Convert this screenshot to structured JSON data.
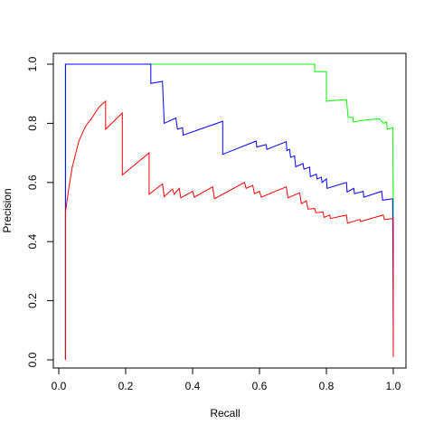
{
  "chart_data": {
    "type": "line",
    "title": "",
    "xlabel": "Recall",
    "ylabel": "Precision",
    "xlim": [
      0,
      1
    ],
    "ylim": [
      0,
      1
    ],
    "xticks": [
      "0.0",
      "0.2",
      "0.4",
      "0.6",
      "0.8",
      "1.0"
    ],
    "yticks": [
      "0.0",
      "0.2",
      "0.4",
      "0.6",
      "0.8",
      "1.0"
    ],
    "grid": false,
    "legend": "none",
    "series": [
      {
        "color": "#00ff00",
        "points": [
          [
            0.02,
            0.0
          ],
          [
            0.02,
            1.0
          ],
          [
            0.765,
            1.0
          ],
          [
            0.765,
            0.975
          ],
          [
            0.8,
            0.975
          ],
          [
            0.8,
            0.875
          ],
          [
            0.83,
            0.878
          ],
          [
            0.86,
            0.88
          ],
          [
            0.865,
            0.82
          ],
          [
            0.88,
            0.82
          ],
          [
            0.88,
            0.805
          ],
          [
            0.92,
            0.812
          ],
          [
            0.96,
            0.815
          ],
          [
            0.97,
            0.8
          ],
          [
            0.98,
            0.805
          ],
          [
            0.982,
            0.78
          ],
          [
            0.998,
            0.785
          ],
          [
            1.0,
            0.52
          ],
          [
            1.0,
            0.01
          ]
        ]
      },
      {
        "color": "#0000ff",
        "points": [
          [
            0.02,
            0.0
          ],
          [
            0.02,
            1.0
          ],
          [
            0.275,
            1.0
          ],
          [
            0.275,
            0.935
          ],
          [
            0.31,
            0.942
          ],
          [
            0.315,
            0.8
          ],
          [
            0.35,
            0.818
          ],
          [
            0.355,
            0.78
          ],
          [
            0.37,
            0.785
          ],
          [
            0.372,
            0.76
          ],
          [
            0.49,
            0.807
          ],
          [
            0.49,
            0.695
          ],
          [
            0.59,
            0.74
          ],
          [
            0.592,
            0.72
          ],
          [
            0.62,
            0.728
          ],
          [
            0.622,
            0.712
          ],
          [
            0.68,
            0.738
          ],
          [
            0.682,
            0.708
          ],
          [
            0.69,
            0.712
          ],
          [
            0.693,
            0.685
          ],
          [
            0.705,
            0.69
          ],
          [
            0.708,
            0.653
          ],
          [
            0.73,
            0.664
          ],
          [
            0.733,
            0.645
          ],
          [
            0.75,
            0.652
          ],
          [
            0.752,
            0.62
          ],
          [
            0.77,
            0.628
          ],
          [
            0.772,
            0.612
          ],
          [
            0.785,
            0.618
          ],
          [
            0.787,
            0.6
          ],
          [
            0.8,
            0.612
          ],
          [
            0.802,
            0.58
          ],
          [
            0.86,
            0.6
          ],
          [
            0.862,
            0.568
          ],
          [
            0.882,
            0.58
          ],
          [
            0.884,
            0.562
          ],
          [
            0.91,
            0.57
          ],
          [
            0.912,
            0.55
          ],
          [
            0.965,
            0.57
          ],
          [
            0.968,
            0.54
          ],
          [
            0.998,
            0.545
          ],
          [
            1.0,
            0.01
          ]
        ]
      },
      {
        "color": "#ff0000",
        "points": [
          [
            0.02,
            0.0
          ],
          [
            0.02,
            0.5
          ],
          [
            0.03,
            0.58
          ],
          [
            0.04,
            0.65
          ],
          [
            0.06,
            0.74
          ],
          [
            0.08,
            0.79
          ],
          [
            0.1,
            0.82
          ],
          [
            0.12,
            0.855
          ],
          [
            0.14,
            0.875
          ],
          [
            0.14,
            0.78
          ],
          [
            0.19,
            0.835
          ],
          [
            0.19,
            0.625
          ],
          [
            0.27,
            0.7
          ],
          [
            0.27,
            0.56
          ],
          [
            0.31,
            0.595
          ],
          [
            0.315,
            0.552
          ],
          [
            0.34,
            0.578
          ],
          [
            0.345,
            0.56
          ],
          [
            0.36,
            0.58
          ],
          [
            0.365,
            0.548
          ],
          [
            0.4,
            0.57
          ],
          [
            0.405,
            0.55
          ],
          [
            0.46,
            0.585
          ],
          [
            0.465,
            0.545
          ],
          [
            0.555,
            0.6
          ],
          [
            0.56,
            0.58
          ],
          [
            0.58,
            0.59
          ],
          [
            0.585,
            0.562
          ],
          [
            0.6,
            0.57
          ],
          [
            0.605,
            0.55
          ],
          [
            0.68,
            0.585
          ],
          [
            0.685,
            0.548
          ],
          [
            0.72,
            0.565
          ],
          [
            0.725,
            0.528
          ],
          [
            0.74,
            0.538
          ],
          [
            0.745,
            0.51
          ],
          [
            0.765,
            0.512
          ],
          [
            0.768,
            0.498
          ],
          [
            0.79,
            0.5
          ],
          [
            0.793,
            0.482
          ],
          [
            0.81,
            0.49
          ],
          [
            0.812,
            0.478
          ],
          [
            0.86,
            0.49
          ],
          [
            0.863,
            0.462
          ],
          [
            0.9,
            0.475
          ],
          [
            0.902,
            0.468
          ],
          [
            0.97,
            0.49
          ],
          [
            0.973,
            0.475
          ],
          [
            1.0,
            0.478
          ],
          [
            1.0,
            0.01
          ]
        ]
      }
    ]
  }
}
